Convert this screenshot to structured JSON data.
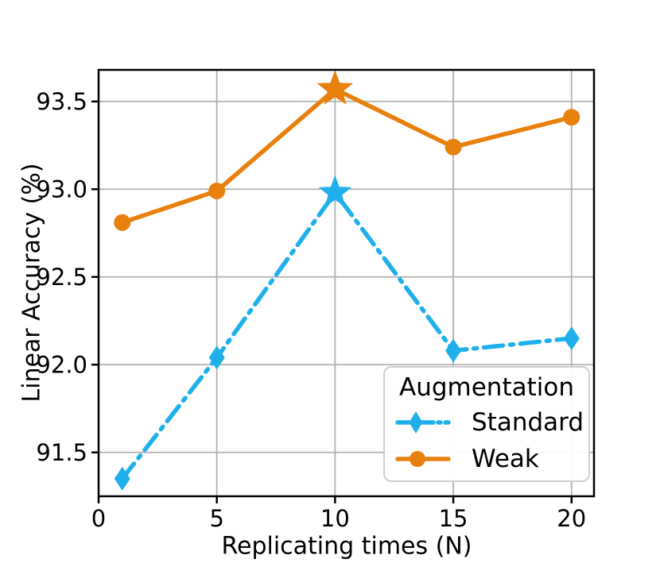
{
  "chart_data": {
    "type": "line",
    "title": "",
    "xlabel": "Replicating times (N)",
    "ylabel": "Linear Accuracy (%)",
    "x_values": [
      1,
      5,
      10,
      15,
      20
    ],
    "star_highlight_x": 10,
    "series": [
      {
        "name": "Standard",
        "color": "#1FB0EC",
        "line_style": "dashdot",
        "marker": "thin-diamond",
        "values": [
          91.35,
          92.04,
          92.98,
          92.08,
          92.15
        ]
      },
      {
        "name": "Weak",
        "color": "#E8800E",
        "line_style": "solid",
        "marker": "circle",
        "values": [
          92.81,
          92.99,
          93.57,
          93.24,
          93.41
        ]
      }
    ],
    "xticks": {
      "values": [
        0,
        5,
        10,
        15,
        20
      ],
      "labels": [
        "0",
        "5",
        "10",
        "15",
        "20"
      ]
    },
    "yticks": {
      "values": [
        91.5,
        92.0,
        92.5,
        93.0,
        93.5
      ],
      "labels": [
        "91.5",
        "92.0",
        "92.5",
        "93.0",
        "93.5"
      ]
    },
    "xlim": [
      0,
      20.95
    ],
    "ylim": [
      91.25,
      93.68
    ],
    "grid": true,
    "grid_color": "#b0b0b0",
    "spine_color": "#000000",
    "legend": {
      "title": "Augmentation",
      "position": "lower-right"
    }
  }
}
